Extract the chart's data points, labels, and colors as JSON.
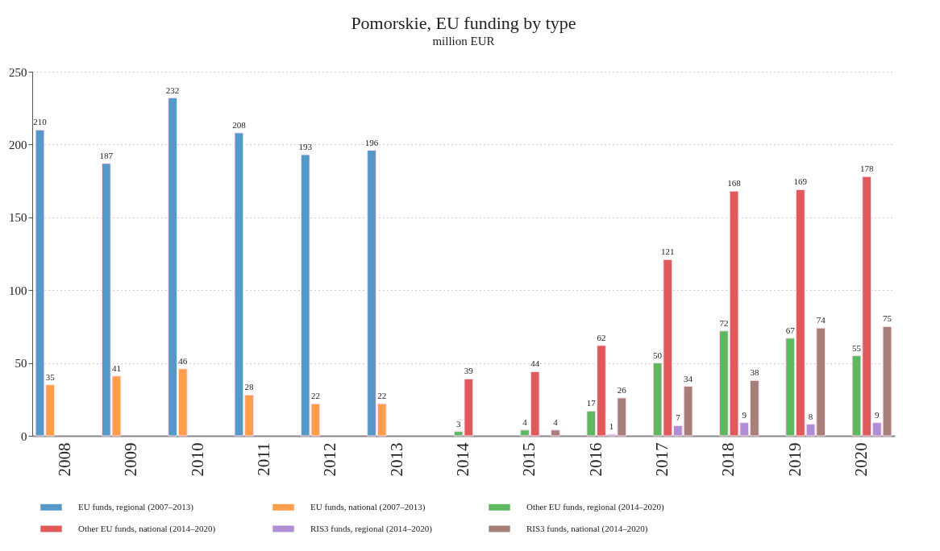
{
  "chart_data": {
    "type": "bar",
    "title": "Pomorskie, EU funding by type",
    "subtitle": "million EUR",
    "categories": [
      "2008",
      "2009",
      "2010",
      "2011",
      "2012",
      "2013",
      "2014",
      "2015",
      "2016",
      "2017",
      "2018",
      "2019",
      "2020"
    ],
    "series": [
      {
        "name": "EU funds, regional (2007–2013)",
        "color": "#5499c7",
        "values": [
          210,
          187,
          232,
          208,
          193,
          196,
          null,
          null,
          null,
          null,
          null,
          null,
          null
        ]
      },
      {
        "name": "EU funds, national (2007–2013)",
        "color": "#ff9e4a",
        "values": [
          35,
          41,
          46,
          28,
          22,
          22,
          null,
          null,
          null,
          null,
          null,
          null,
          null
        ]
      },
      {
        "name": "Other EU funds, regional (2014–2020)",
        "color": "#5db85f",
        "values": [
          null,
          null,
          null,
          null,
          null,
          null,
          3,
          4,
          17,
          50,
          72,
          67,
          55
        ]
      },
      {
        "name": "Other EU funds, national (2014–2020)",
        "color": "#e05a5c",
        "values": [
          null,
          null,
          null,
          null,
          null,
          null,
          39,
          44,
          62,
          121,
          168,
          169,
          178
        ]
      },
      {
        "name": "RIS3 funds, regional (2014–2020)",
        "color": "#b08ed6",
        "values": [
          null,
          null,
          null,
          null,
          null,
          null,
          null,
          null,
          1,
          7,
          9,
          8,
          9
        ]
      },
      {
        "name": "RIS3 funds, national (2014–2020)",
        "color": "#a67f78",
        "values": [
          null,
          null,
          null,
          null,
          null,
          null,
          null,
          4,
          26,
          34,
          38,
          74,
          75
        ]
      }
    ],
    "ylim": [
      0,
      250
    ],
    "yticks": [
      0,
      50,
      100,
      150,
      200,
      250
    ],
    "grid": "y",
    "legend": "bottom",
    "data_labels": true
  }
}
